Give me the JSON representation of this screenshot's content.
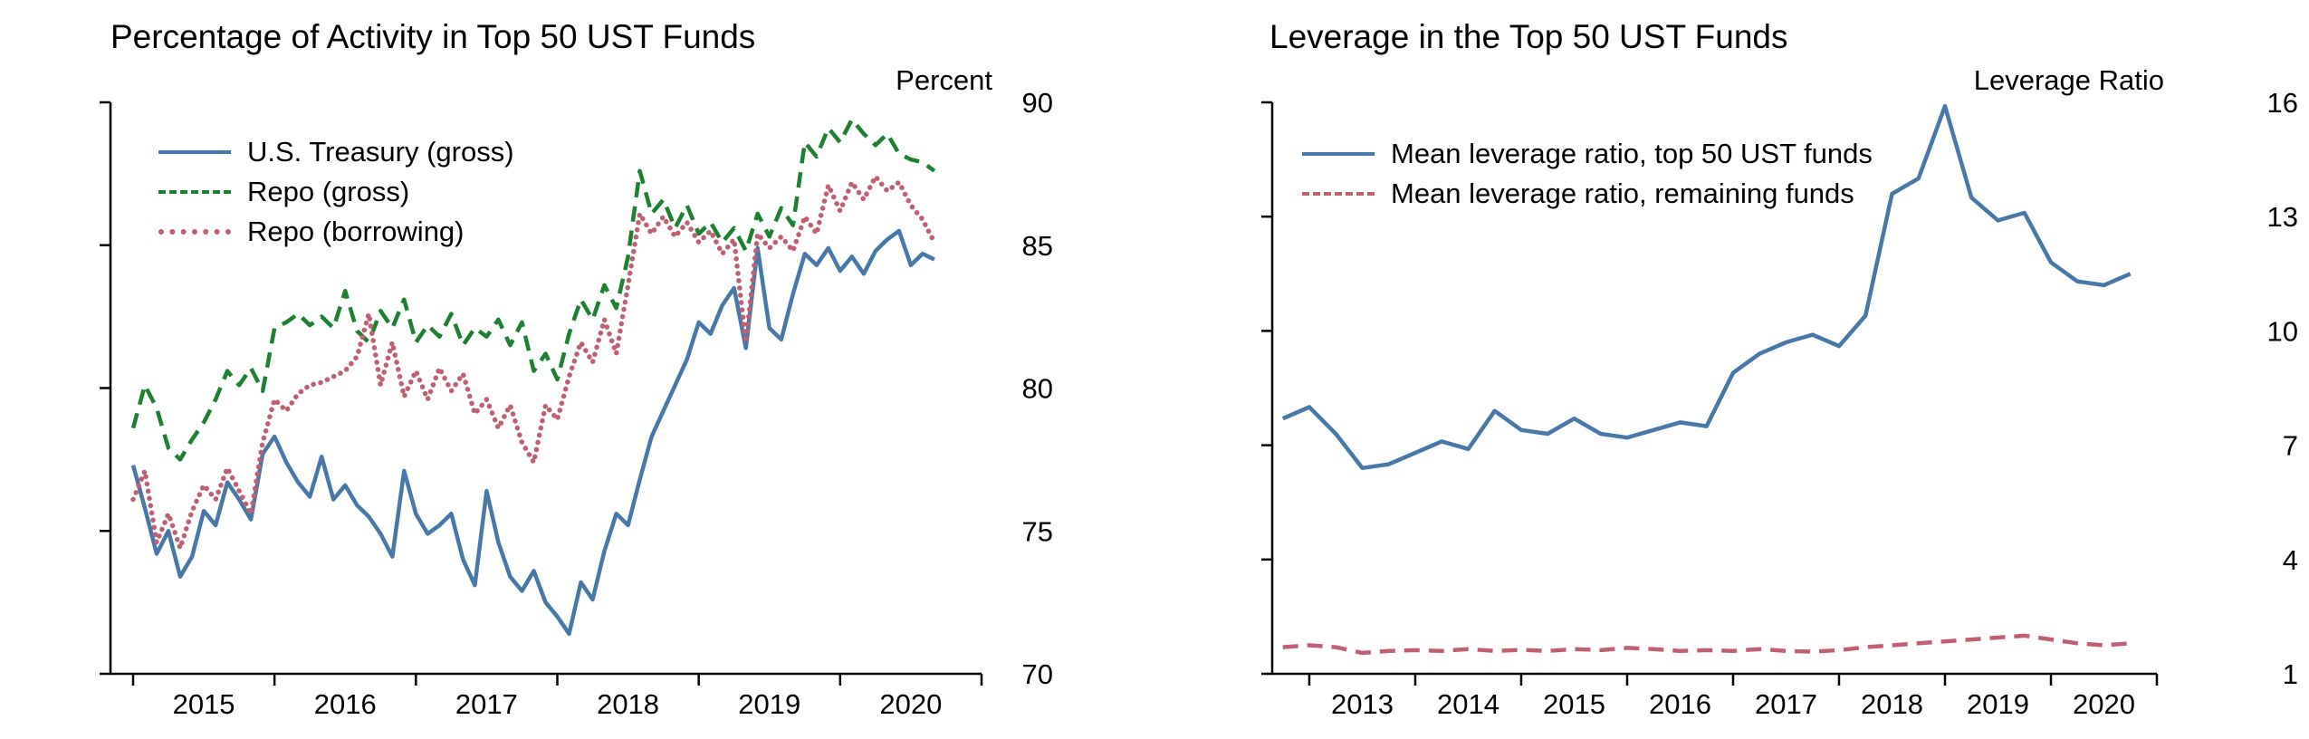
{
  "chart_data": [
    {
      "name": "activity-top50",
      "type": "line",
      "title": "Percentage of Activity in Top 50 UST Funds",
      "unit_label": "Percent",
      "xlabel": "",
      "ylabel": "Percent",
      "grid": false,
      "legend_position": "top-left-inside",
      "xlim": [
        2014.84,
        2021.0
      ],
      "ylim": [
        70,
        90
      ],
      "yticks": [
        70,
        75,
        80,
        85,
        90
      ],
      "xticks": [
        2015,
        2016,
        2017,
        2018,
        2019,
        2020,
        2021
      ],
      "xtick_label_texts": [
        "2015",
        "2016",
        "2017",
        "2018",
        "2019",
        "2020"
      ],
      "xtick_label_positions": [
        2015.5,
        2016.5,
        2017.5,
        2018.5,
        2019.5,
        2020.5
      ],
      "x_start": 2015.0,
      "x_step": 0.083333,
      "series": [
        {
          "name": "U.S. Treasury (gross)",
          "color": "#4878a8",
          "style": "solid",
          "values": [
            77.3,
            75.8,
            74.2,
            75.0,
            73.4,
            74.1,
            75.7,
            75.2,
            76.7,
            76.1,
            75.4,
            77.7,
            78.3,
            77.4,
            76.7,
            76.2,
            77.6,
            76.1,
            76.6,
            75.9,
            75.5,
            74.9,
            74.1,
            77.1,
            75.6,
            74.9,
            75.2,
            75.6,
            74.0,
            73.1,
            76.4,
            74.6,
            73.4,
            72.9,
            73.6,
            72.5,
            72.0,
            71.4,
            73.2,
            72.6,
            74.3,
            75.6,
            75.2,
            76.8,
            78.3,
            79.2,
            80.1,
            81.0,
            82.3,
            81.9,
            82.9,
            83.5,
            81.4,
            84.9,
            82.1,
            81.7,
            83.3,
            84.7,
            84.3,
            84.9,
            84.1,
            84.6,
            84.0,
            84.8,
            85.2,
            85.5,
            84.3,
            84.7,
            84.5
          ]
        },
        {
          "name": "Repo (gross)",
          "color": "#1e8032",
          "style": "dashed",
          "values": [
            78.6,
            80.1,
            79.3,
            77.9,
            77.5,
            78.2,
            78.8,
            79.6,
            80.6,
            80.1,
            80.7,
            79.9,
            82.1,
            82.3,
            82.6,
            82.2,
            82.5,
            82.1,
            83.4,
            82.0,
            81.6,
            82.7,
            82.1,
            83.1,
            81.6,
            82.2,
            81.8,
            82.6,
            81.5,
            82.1,
            81.8,
            82.4,
            81.5,
            82.3,
            80.6,
            81.2,
            80.3,
            81.9,
            83.1,
            82.4,
            83.6,
            82.8,
            84.6,
            87.6,
            86.1,
            86.6,
            85.6,
            86.4,
            85.4,
            85.8,
            85.1,
            85.6,
            84.8,
            86.1,
            85.3,
            86.3,
            85.7,
            88.6,
            88.1,
            89.1,
            88.6,
            89.4,
            88.9,
            88.5,
            88.9,
            88.2,
            88.0,
            87.9,
            87.6
          ]
        },
        {
          "name": "Repo (borrowing)",
          "color": "#c05f72",
          "style": "dotted",
          "values": [
            76.1,
            77.1,
            74.6,
            75.6,
            74.4,
            75.7,
            76.6,
            76.1,
            77.2,
            76.4,
            75.6,
            78.1,
            79.6,
            79.2,
            79.8,
            80.1,
            80.2,
            80.4,
            80.6,
            81.1,
            82.6,
            80.1,
            81.6,
            79.7,
            80.6,
            79.6,
            80.7,
            79.9,
            80.5,
            79.1,
            79.6,
            78.6,
            79.4,
            78.1,
            77.4,
            79.4,
            78.9,
            80.4,
            81.6,
            80.9,
            82.4,
            81.2,
            83.6,
            86.1,
            85.4,
            86.0,
            85.3,
            85.8,
            85.1,
            85.5,
            84.7,
            85.2,
            81.6,
            85.4,
            84.9,
            85.3,
            84.8,
            86.0,
            85.4,
            87.1,
            86.2,
            87.2,
            86.6,
            87.4,
            86.9,
            87.2,
            86.4,
            85.9,
            85.1
          ]
        }
      ]
    },
    {
      "name": "leverage-top50",
      "type": "line",
      "title": "Leverage in the Top 50 UST Funds",
      "unit_label": "Leverage Ratio",
      "xlabel": "",
      "ylabel": "Leverage Ratio",
      "grid": false,
      "legend_position": "top-left-inside",
      "xlim": [
        2012.65,
        2021.0
      ],
      "ylim": [
        1,
        16
      ],
      "yticks": [
        1,
        4,
        7,
        10,
        13,
        16
      ],
      "xticks": [
        2013,
        2014,
        2015,
        2016,
        2017,
        2018,
        2019,
        2020,
        2021
      ],
      "xtick_label_texts": [
        "2013",
        "2014",
        "2015",
        "2016",
        "2017",
        "2018",
        "2019",
        "2020"
      ],
      "xtick_label_positions": [
        2013.5,
        2014.5,
        2015.5,
        2016.5,
        2017.5,
        2018.5,
        2019.5,
        2020.5
      ],
      "x_start": 2012.75,
      "x_step": 0.25,
      "series": [
        {
          "name": "Mean leverage ratio, top 50 UST funds",
          "color": "#4878a8",
          "style": "solid",
          "values": [
            7.7,
            8.0,
            7.3,
            6.4,
            6.5,
            6.8,
            7.1,
            6.9,
            7.9,
            7.4,
            7.3,
            7.7,
            7.3,
            7.2,
            7.4,
            7.6,
            7.5,
            8.9,
            9.4,
            9.7,
            9.9,
            9.6,
            10.4,
            13.6,
            14.0,
            15.9,
            13.5,
            12.9,
            13.1,
            11.8,
            11.3,
            11.2,
            11.5
          ]
        },
        {
          "name": "Mean leverage ratio, remaining funds",
          "color": "#c05f72",
          "style": "dashed",
          "values": [
            1.7,
            1.75,
            1.7,
            1.55,
            1.6,
            1.62,
            1.6,
            1.65,
            1.6,
            1.63,
            1.6,
            1.65,
            1.62,
            1.68,
            1.65,
            1.6,
            1.62,
            1.6,
            1.65,
            1.6,
            1.58,
            1.62,
            1.7,
            1.75,
            1.8,
            1.85,
            1.9,
            1.95,
            2.0,
            1.9,
            1.8,
            1.75,
            1.8
          ]
        }
      ]
    }
  ]
}
